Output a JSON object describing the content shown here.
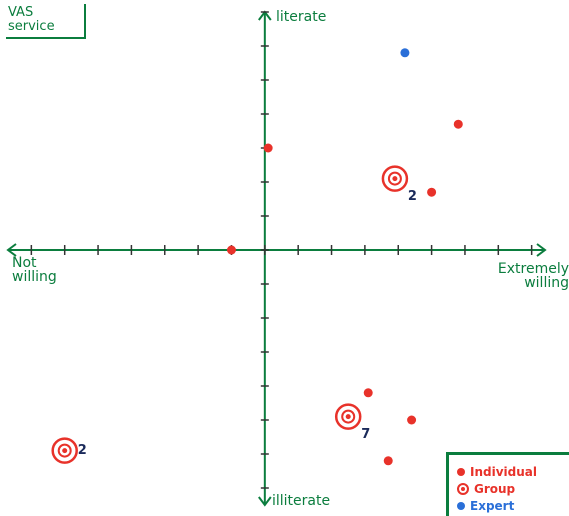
{
  "chart_data": {
    "type": "scatter",
    "title": "VAS service",
    "y_label_top": "literate",
    "y_label_bottom": "illiterate",
    "x_label_left": "Not willing",
    "x_label_right": "Extremely willing",
    "xlim": [
      -7.7,
      8.4
    ],
    "ylim": [
      -7.5,
      7
    ],
    "xticks": [
      -7,
      -6,
      -5,
      -4,
      -3,
      -2,
      -1,
      0,
      1,
      2,
      3,
      4,
      5,
      6,
      7,
      8
    ],
    "yticks": [
      -7,
      -6,
      -5,
      -4,
      -3,
      -2,
      -1,
      0,
      1,
      2,
      3,
      4,
      5,
      6,
      7
    ],
    "series": [
      {
        "name": "Individual",
        "color": "#e8322a",
        "marker": "dot",
        "x": [
          5.8,
          5.0,
          0.1,
          -1.0,
          3.1,
          4.4,
          3.7
        ],
        "values": [
          3.7,
          1.7,
          3.0,
          0,
          -4.2,
          -5.0,
          -6.2
        ]
      },
      {
        "name": "Group",
        "color": "#e8322a",
        "marker": "ring",
        "x": [
          3.9,
          2.5,
          -6.0
        ],
        "values": [
          2.1,
          -4.9,
          -5.9
        ],
        "counts": [
          2,
          7,
          2
        ]
      },
      {
        "name": "Expert",
        "color": "#2a6fd8",
        "marker": "dot",
        "x": [
          4.2
        ],
        "values": [
          5.8
        ]
      }
    ]
  }
}
